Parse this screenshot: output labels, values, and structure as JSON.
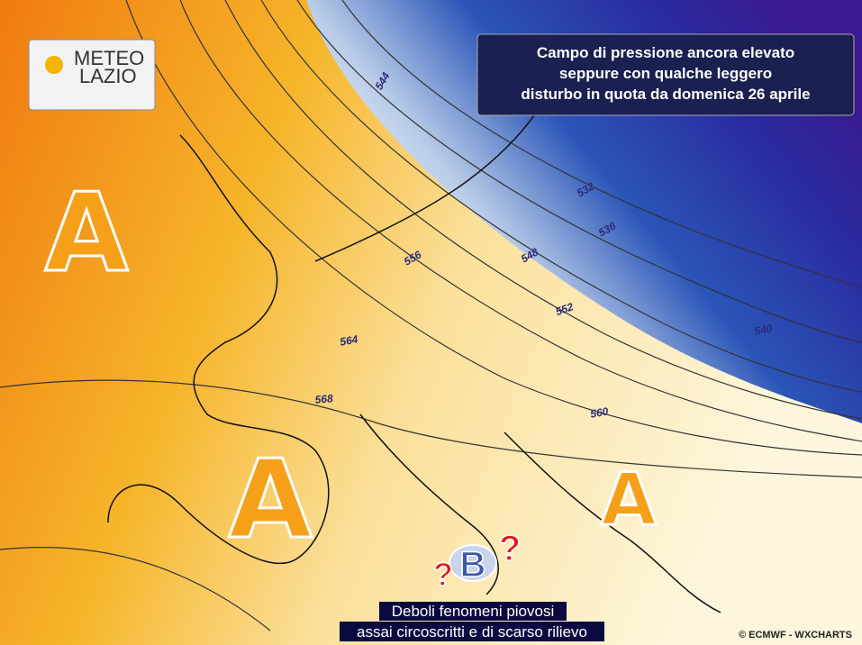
{
  "logo": {
    "line1": "METEO",
    "line2": "LAZIO"
  },
  "headline": {
    "lines": [
      "Campo di pressione ancora elevato",
      "seppure con qualche leggero",
      "disturbo in quota da domenica 26 aprile"
    ]
  },
  "contour_labels": [
    "544",
    "532",
    "536",
    "548",
    "556",
    "552",
    "540",
    "564",
    "560",
    "568"
  ],
  "pressure_centers": {
    "high": [
      "A",
      "A",
      "A"
    ],
    "low": "B",
    "question_marks": [
      "?",
      "?"
    ]
  },
  "caption": {
    "lines": [
      "Deboli fenomeni piovosi",
      "assai circoscritti e di scarso rilievo"
    ]
  },
  "credit": "© ECMWF - WXCHARTS"
}
